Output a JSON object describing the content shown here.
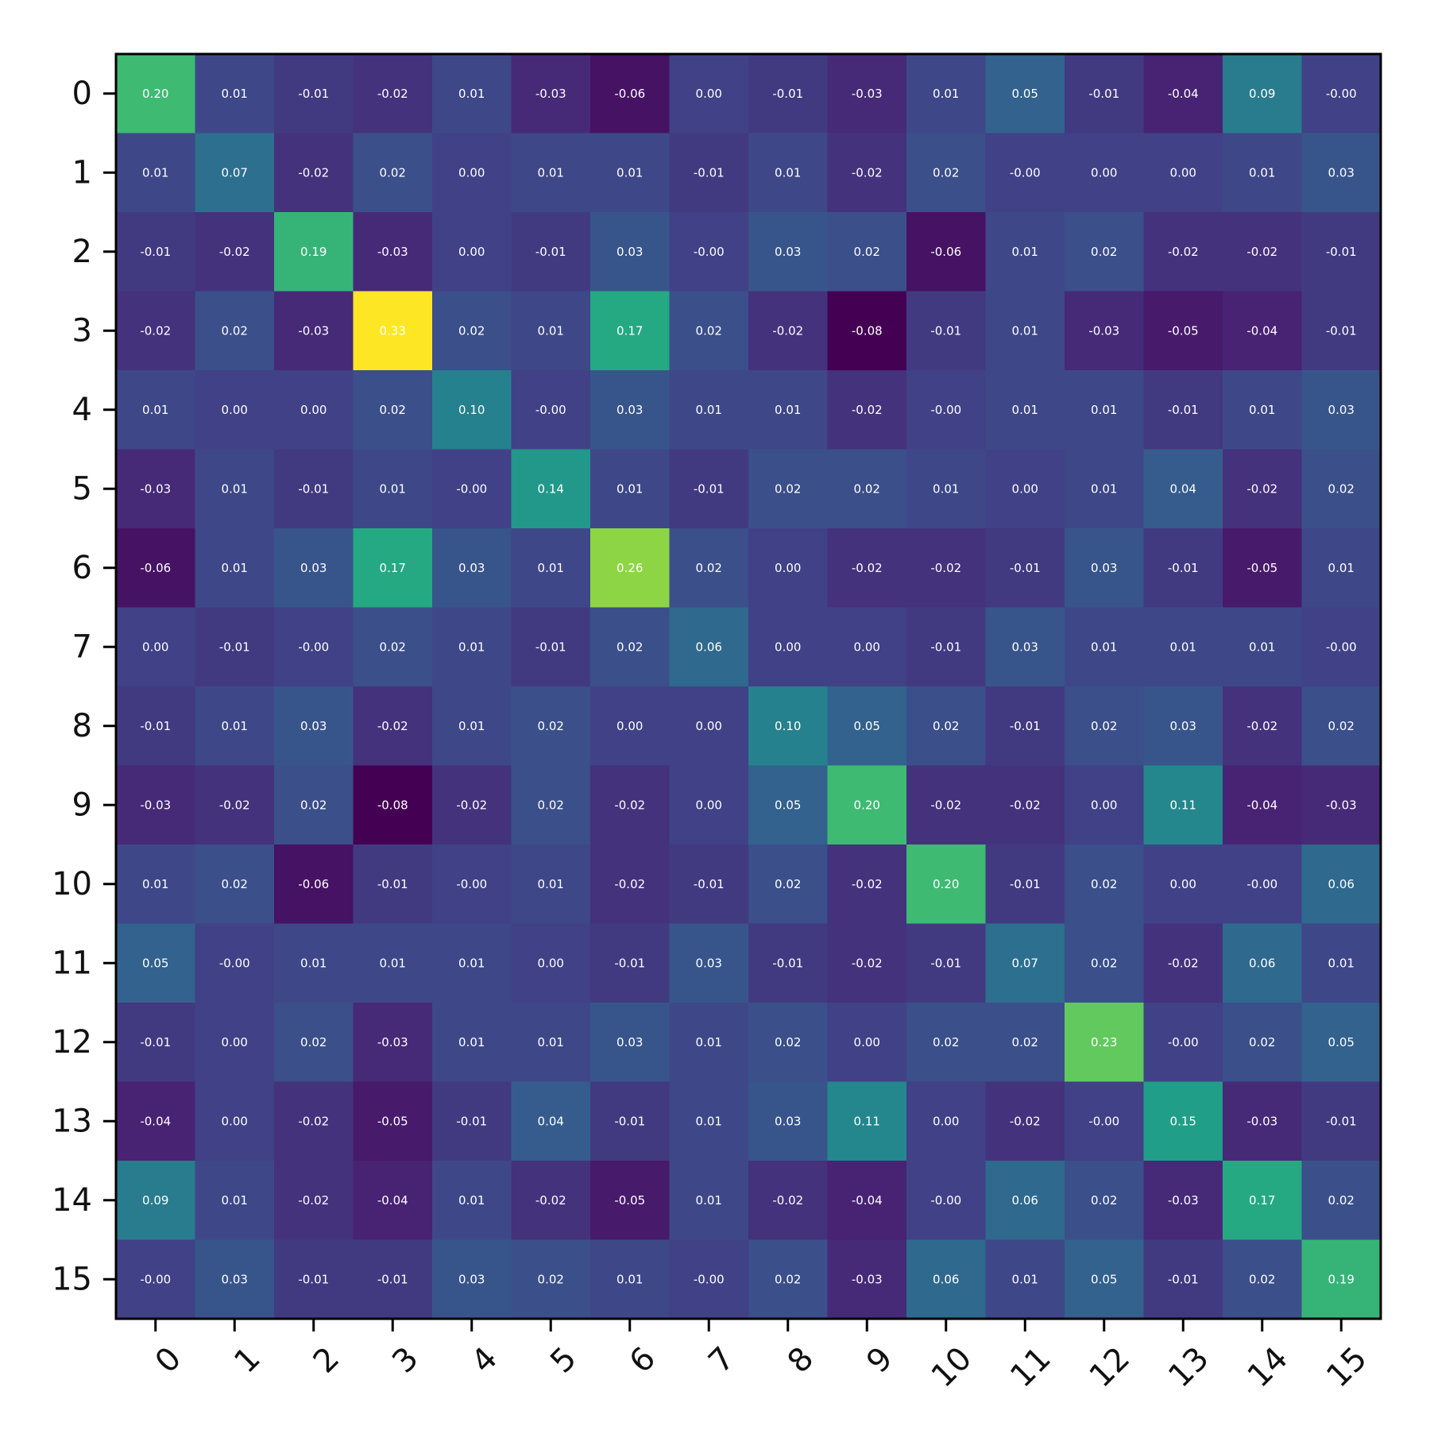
{
  "chart_data": {
    "type": "heatmap",
    "title": "",
    "xlabel": "",
    "ylabel": "",
    "x_ticks": [
      "0",
      "1",
      "2",
      "3",
      "4",
      "5",
      "6",
      "7",
      "8",
      "9",
      "10",
      "11",
      "12",
      "13",
      "14",
      "15"
    ],
    "y_ticks": [
      "0",
      "1",
      "2",
      "3",
      "4",
      "5",
      "6",
      "7",
      "8",
      "9",
      "10",
      "11",
      "12",
      "13",
      "14",
      "15"
    ],
    "colormap": "viridis",
    "value_range": [
      -0.08,
      0.33
    ],
    "grid": false,
    "values": [
      [
        0.2,
        0.01,
        -0.01,
        -0.02,
        0.01,
        -0.03,
        -0.06,
        0.0,
        -0.01,
        -0.03,
        0.01,
        0.05,
        -0.01,
        -0.04,
        0.09,
        -0.0
      ],
      [
        0.01,
        0.07,
        -0.02,
        0.02,
        0.0,
        0.01,
        0.01,
        -0.01,
        0.01,
        -0.02,
        0.02,
        -0.0,
        0.0,
        0.0,
        0.01,
        0.03
      ],
      [
        -0.01,
        -0.02,
        0.19,
        -0.03,
        0.0,
        -0.01,
        0.03,
        -0.0,
        0.03,
        0.02,
        -0.06,
        0.01,
        0.02,
        -0.02,
        -0.02,
        -0.01
      ],
      [
        -0.02,
        0.02,
        -0.03,
        0.33,
        0.02,
        0.01,
        0.17,
        0.02,
        -0.02,
        -0.08,
        -0.01,
        0.01,
        -0.03,
        -0.05,
        -0.04,
        -0.01
      ],
      [
        0.01,
        0.0,
        0.0,
        0.02,
        0.1,
        -0.0,
        0.03,
        0.01,
        0.01,
        -0.02,
        -0.0,
        0.01,
        0.01,
        -0.01,
        0.01,
        0.03
      ],
      [
        -0.03,
        0.01,
        -0.01,
        0.01,
        -0.0,
        0.14,
        0.01,
        -0.01,
        0.02,
        0.02,
        0.01,
        0.0,
        0.01,
        0.04,
        -0.02,
        0.02
      ],
      [
        -0.06,
        0.01,
        0.03,
        0.17,
        0.03,
        0.01,
        0.26,
        0.02,
        0.0,
        -0.02,
        -0.02,
        -0.01,
        0.03,
        -0.01,
        -0.05,
        0.01
      ],
      [
        0.0,
        -0.01,
        -0.0,
        0.02,
        0.01,
        -0.01,
        0.02,
        0.06,
        0.0,
        0.0,
        -0.01,
        0.03,
        0.01,
        0.01,
        0.01,
        -0.0
      ],
      [
        -0.01,
        0.01,
        0.03,
        -0.02,
        0.01,
        0.02,
        0.0,
        0.0,
        0.1,
        0.05,
        0.02,
        -0.01,
        0.02,
        0.03,
        -0.02,
        0.02
      ],
      [
        -0.03,
        -0.02,
        0.02,
        -0.08,
        -0.02,
        0.02,
        -0.02,
        0.0,
        0.05,
        0.2,
        -0.02,
        -0.02,
        0.0,
        0.11,
        -0.04,
        -0.03
      ],
      [
        0.01,
        0.02,
        -0.06,
        -0.01,
        -0.0,
        0.01,
        -0.02,
        -0.01,
        0.02,
        -0.02,
        0.2,
        -0.01,
        0.02,
        0.0,
        -0.0,
        0.06
      ],
      [
        0.05,
        -0.0,
        0.01,
        0.01,
        0.01,
        0.0,
        -0.01,
        0.03,
        -0.01,
        -0.02,
        -0.01,
        0.07,
        0.02,
        -0.02,
        0.06,
        0.01
      ],
      [
        -0.01,
        0.0,
        0.02,
        -0.03,
        0.01,
        0.01,
        0.03,
        0.01,
        0.02,
        0.0,
        0.02,
        0.02,
        0.23,
        -0.0,
        0.02,
        0.05
      ],
      [
        -0.04,
        0.0,
        -0.02,
        -0.05,
        -0.01,
        0.04,
        -0.01,
        0.01,
        0.03,
        0.11,
        0.0,
        -0.02,
        -0.0,
        0.15,
        -0.03,
        -0.01
      ],
      [
        0.09,
        0.01,
        -0.02,
        -0.04,
        0.01,
        -0.02,
        -0.05,
        0.01,
        -0.02,
        -0.04,
        -0.0,
        0.06,
        0.02,
        -0.03,
        0.17,
        0.02
      ],
      [
        -0.0,
        0.03,
        -0.01,
        -0.01,
        0.03,
        0.02,
        0.01,
        -0.0,
        0.02,
        -0.03,
        0.06,
        0.01,
        0.05,
        -0.01,
        0.02,
        0.19
      ]
    ],
    "cell_labels": [
      [
        "0.20",
        "0.01",
        "-0.01",
        "-0.02",
        "0.01",
        "-0.03",
        "-0.06",
        "0.00",
        "-0.01",
        "-0.03",
        "0.01",
        "0.05",
        "-0.01",
        "-0.04",
        "0.09",
        "-0.00"
      ],
      [
        "0.01",
        "0.07",
        "-0.02",
        "0.02",
        "0.00",
        "0.01",
        "0.01",
        "-0.01",
        "0.01",
        "-0.02",
        "0.02",
        "-0.00",
        "0.00",
        "0.00",
        "0.01",
        "0.03"
      ],
      [
        "-0.01",
        "-0.02",
        "0.19",
        "-0.03",
        "0.00",
        "-0.01",
        "0.03",
        "-0.00",
        "0.03",
        "0.02",
        "-0.06",
        "0.01",
        "0.02",
        "-0.02",
        "-0.02",
        "-0.01"
      ],
      [
        "-0.02",
        "0.02",
        "-0.03",
        "0.33",
        "0.02",
        "0.01",
        "0.17",
        "0.02",
        "-0.02",
        "-0.08",
        "-0.01",
        "0.01",
        "-0.03",
        "-0.05",
        "-0.04",
        "-0.01"
      ],
      [
        "0.01",
        "0.00",
        "0.00",
        "0.02",
        "0.10",
        "-0.00",
        "0.03",
        "0.01",
        "0.01",
        "-0.02",
        "-0.00",
        "0.01",
        "0.01",
        "-0.01",
        "0.01",
        "0.03"
      ],
      [
        "-0.03",
        "0.01",
        "-0.01",
        "0.01",
        "-0.00",
        "0.14",
        "0.01",
        "-0.01",
        "0.02",
        "0.02",
        "0.01",
        "0.00",
        "0.01",
        "0.04",
        "-0.02",
        "0.02"
      ],
      [
        "-0.06",
        "0.01",
        "0.03",
        "0.17",
        "0.03",
        "0.01",
        "0.26",
        "0.02",
        "0.00",
        "-0.02",
        "-0.02",
        "-0.01",
        "0.03",
        "-0.01",
        "-0.05",
        "0.01"
      ],
      [
        "0.00",
        "-0.01",
        "-0.00",
        "0.02",
        "0.01",
        "-0.01",
        "0.02",
        "0.06",
        "0.00",
        "0.00",
        "-0.01",
        "0.03",
        "0.01",
        "0.01",
        "0.01",
        "-0.00"
      ],
      [
        "-0.01",
        "0.01",
        "0.03",
        "-0.02",
        "0.01",
        "0.02",
        "0.00",
        "0.00",
        "0.10",
        "0.05",
        "0.02",
        "-0.01",
        "0.02",
        "0.03",
        "-0.02",
        "0.02"
      ],
      [
        "-0.03",
        "-0.02",
        "0.02",
        "-0.08",
        "-0.02",
        "0.02",
        "-0.02",
        "0.00",
        "0.05",
        "0.20",
        "-0.02",
        "-0.02",
        "0.00",
        "0.11",
        "-0.04",
        "-0.03"
      ],
      [
        "0.01",
        "0.02",
        "-0.06",
        "-0.01",
        "-0.00",
        "0.01",
        "-0.02",
        "-0.01",
        "0.02",
        "-0.02",
        "0.20",
        "-0.01",
        "0.02",
        "0.00",
        "-0.00",
        "0.06"
      ],
      [
        "0.05",
        "-0.00",
        "0.01",
        "0.01",
        "0.01",
        "0.00",
        "-0.01",
        "0.03",
        "-0.01",
        "-0.02",
        "-0.01",
        "0.07",
        "0.02",
        "-0.02",
        "0.06",
        "0.01"
      ],
      [
        "-0.01",
        "0.00",
        "0.02",
        "-0.03",
        "0.01",
        "0.01",
        "0.03",
        "0.01",
        "0.02",
        "0.00",
        "0.02",
        "0.02",
        "0.23",
        "-0.00",
        "0.02",
        "0.05"
      ],
      [
        "-0.04",
        "0.00",
        "-0.02",
        "-0.05",
        "-0.01",
        "0.04",
        "-0.01",
        "0.01",
        "0.03",
        "0.11",
        "0.00",
        "-0.02",
        "-0.00",
        "0.15",
        "-0.03",
        "-0.01"
      ],
      [
        "0.09",
        "0.01",
        "-0.02",
        "-0.04",
        "0.01",
        "-0.02",
        "-0.05",
        "0.01",
        "-0.02",
        "-0.04",
        "-0.00",
        "0.06",
        "0.02",
        "-0.03",
        "0.17",
        "0.02"
      ],
      [
        "-0.00",
        "0.03",
        "-0.01",
        "-0.01",
        "0.03",
        "0.02",
        "0.01",
        "-0.00",
        "0.02",
        "-0.03",
        "0.06",
        "0.01",
        "0.05",
        "-0.01",
        "0.02",
        "0.19"
      ]
    ]
  }
}
